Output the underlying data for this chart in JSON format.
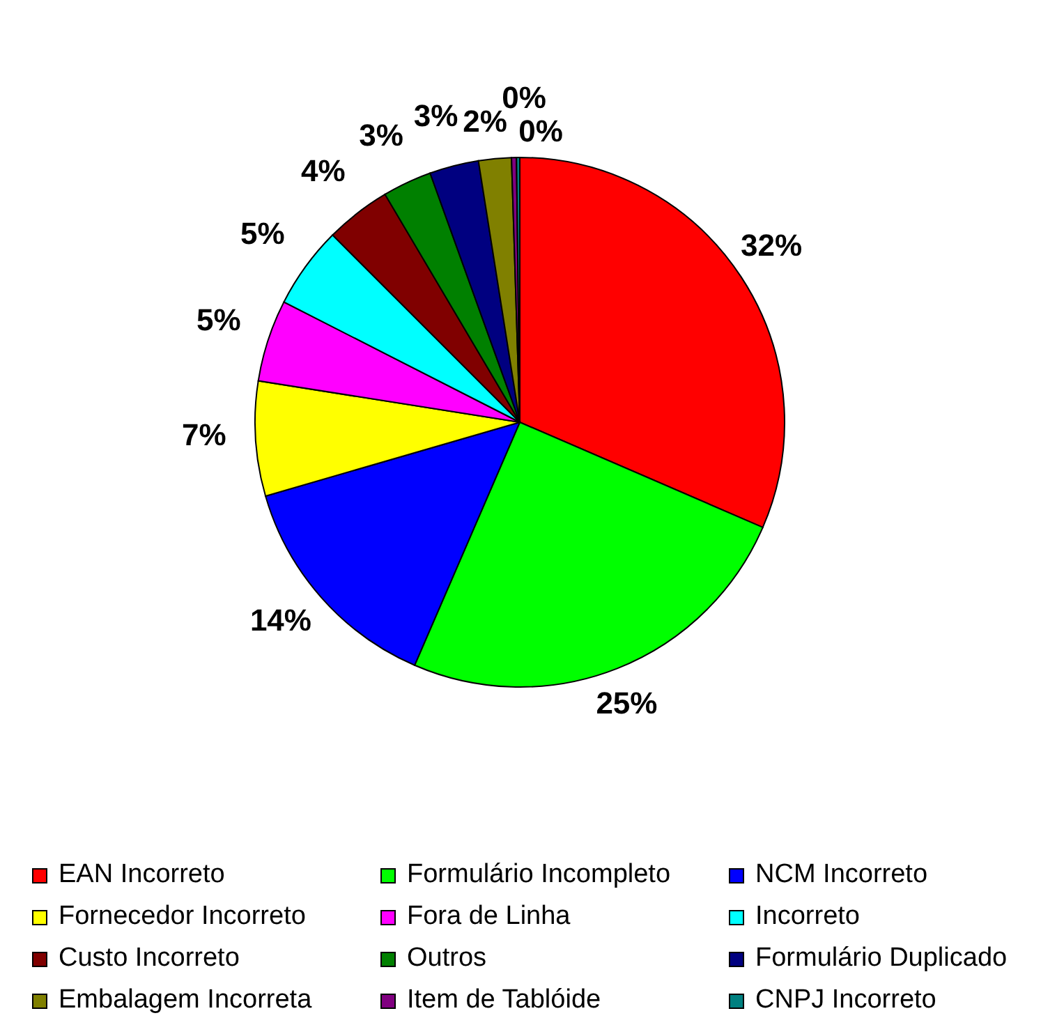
{
  "chart_data": {
    "type": "pie",
    "categories": [
      "EAN Incorreto",
      "Formulário Incompleto",
      "NCM Incorreto",
      "Fornecedor Incorreto",
      "Fora de Linha",
      "Incorreto",
      "Custo Incorreto",
      "Outros",
      "Formulário Duplicado",
      "Embalagem Incorreta",
      "Item de Tablóide",
      "CNPJ Incorreto"
    ],
    "values": [
      31.5,
      25,
      14,
      7,
      5,
      5,
      4,
      3,
      3,
      2,
      0.3,
      0.2
    ],
    "value_labels": [
      "32%",
      "25%",
      "14%",
      "7%",
      "5%",
      "5%",
      "4%",
      "3%",
      "3%",
      "2%",
      "0%",
      "0%"
    ],
    "colors": [
      "#ff0000",
      "#00ff00",
      "#0000ff",
      "#ffff00",
      "#ff00ff",
      "#00ffff",
      "#800000",
      "#008000",
      "#000080",
      "#808000",
      "#800080",
      "#008080"
    ],
    "legend": "bottom"
  }
}
